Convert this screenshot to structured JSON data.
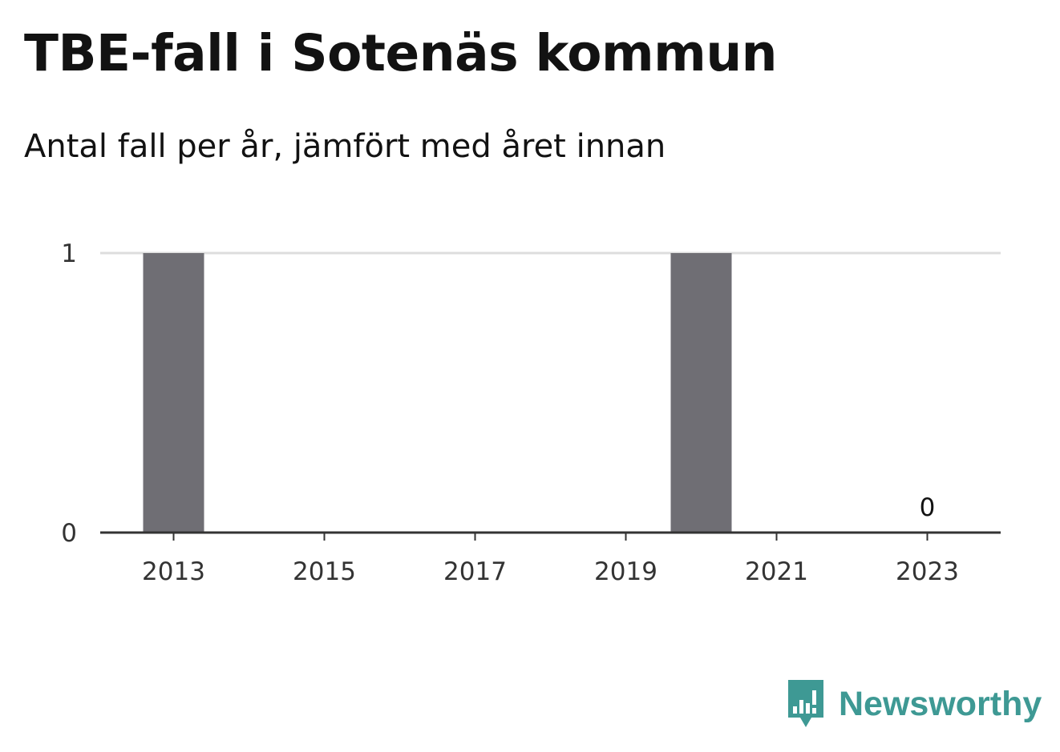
{
  "header": {
    "title": "TBE-fall i Sotenäs kommun",
    "subtitle": "Antal fall per år, jämfört med året innan"
  },
  "brand": {
    "name": "Newsworthy",
    "logo_icon": "newsworthy-bar-chart-logo-icon",
    "color": "#3e9994"
  },
  "colors": {
    "bar": "#6f6e74",
    "grid": "#dddddd",
    "axis": "#333333"
  },
  "chart_data": {
    "type": "bar",
    "title": "TBE-fall i Sotenäs kommun",
    "subtitle": "Antal fall per år, jämfört med året innan",
    "xlabel": "",
    "ylabel": "",
    "x": [
      2013,
      2014,
      2015,
      2016,
      2017,
      2018,
      2019,
      2020,
      2021,
      2022,
      2023
    ],
    "values": [
      1,
      0,
      0,
      0,
      0,
      0,
      0,
      1,
      0,
      0,
      0
    ],
    "x_ticks": [
      "2013",
      "2015",
      "2017",
      "2019",
      "2021",
      "2023"
    ],
    "y_ticks": [
      "0",
      "1"
    ],
    "ylim": [
      0,
      1
    ],
    "grid": true,
    "legend": "none",
    "annotations": [
      {
        "x": 2023,
        "text": "0"
      }
    ]
  }
}
